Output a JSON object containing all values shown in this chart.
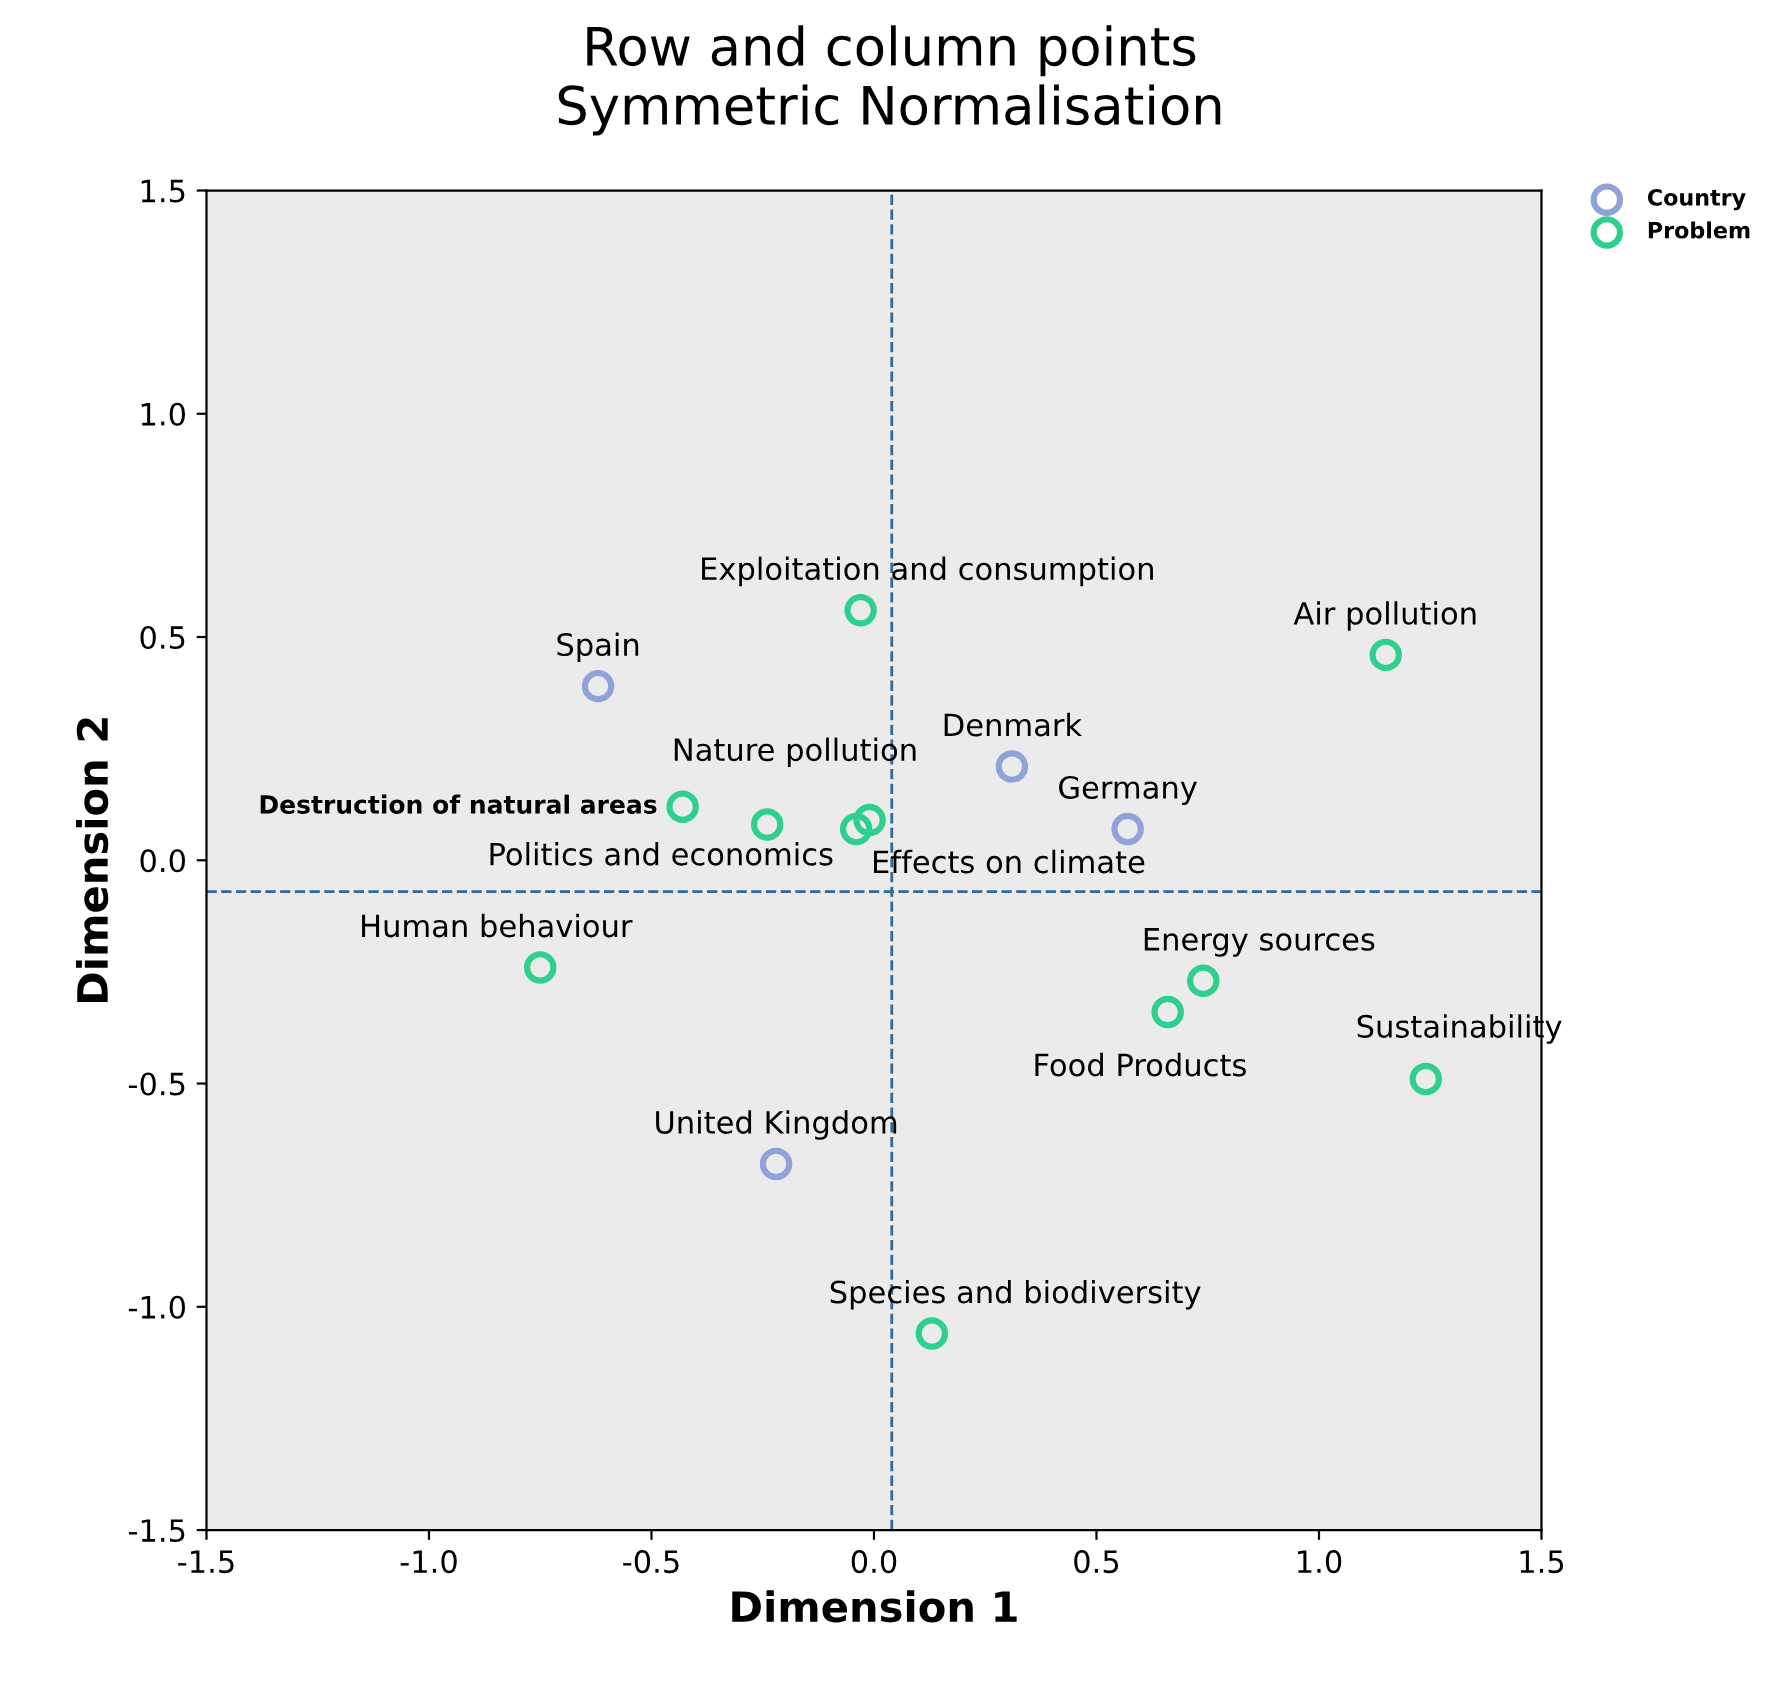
{
  "chart_data": {
    "type": "scatter",
    "title": "Row and column points\nSymmetric Normalisation",
    "xlabel": "Dimension 1",
    "ylabel": "Dimension 2",
    "xlim": [
      -1.5,
      1.5
    ],
    "ylim": [
      -1.5,
      1.5
    ],
    "xticks": [
      -1.5,
      {
        "value": -1,
        "label": "-1.0"
      },
      -0.5,
      {
        "value": 0,
        "label": "0.0"
      },
      0.5,
      {
        "value": 1,
        "label": "1.0"
      },
      1.5
    ],
    "yticks": [
      -1.5,
      {
        "value": -1,
        "label": "-1.0"
      },
      -0.5,
      {
        "value": 0,
        "label": "0.0"
      },
      0.5,
      {
        "value": 1,
        "label": "1.0"
      },
      1.5
    ],
    "series": [
      {
        "name": "Country",
        "color": "#8fa3d9",
        "x": [
          -0.62,
          0.31,
          0.57,
          -0.22
        ],
        "values": [
          0.39,
          0.21,
          0.07,
          -0.68
        ]
      },
      {
        "name": "Problem",
        "color": "#2ecf8f",
        "x": [
          -0.03,
          1.15,
          -0.43,
          -0.24,
          -0.04,
          -0.01,
          -0.75,
          0.74,
          0.66,
          1.24,
          0.13
        ],
        "values": [
          0.56,
          0.46,
          0.12,
          0.08,
          0.07,
          0.09,
          -0.24,
          -0.27,
          -0.34,
          -0.49,
          -1.06
        ]
      }
    ],
    "annotations": [
      {
        "text": "Spain",
        "x": -0.62,
        "y": 0.39
      },
      {
        "text": "Denmark",
        "x": 0.31,
        "y": 0.21
      },
      {
        "text": "Germany",
        "x": 0.57,
        "y": 0.07
      },
      {
        "text": "United Kingdom",
        "x": -0.22,
        "y": -0.68
      },
      {
        "text": "Exploitation and consumption",
        "x": -0.03,
        "y": 0.56
      },
      {
        "text": "Air pollution",
        "x": 1.15,
        "y": 0.46
      },
      {
        "text": "Destruction of natural areas",
        "x": -0.43,
        "y": 0.12
      },
      {
        "text": "Nature pollution",
        "x": -0.24,
        "y": 0.08
      },
      {
        "text": "Politics and economics",
        "x": -0.04,
        "y": 0.07
      },
      {
        "text": "Effects on climate",
        "x": -0.01,
        "y": 0.09
      },
      {
        "text": "Human behaviour",
        "x": -0.75,
        "y": -0.24
      },
      {
        "text": "Energy sources",
        "x": 0.74,
        "y": -0.27
      },
      {
        "text": "Food Products",
        "x": 0.66,
        "y": -0.34
      },
      {
        "text": "Sustainability",
        "x": 1.24,
        "y": -0.49
      },
      {
        "text": "Species and biodiversity",
        "x": 0.13,
        "y": -1.06
      }
    ],
    "ref_lines": [
      {
        "axis": "x",
        "value": 0.04,
        "line_style": "dashed",
        "color": "#2e6a9e"
      },
      {
        "axis": "y",
        "value": -0.07,
        "line_style": "dashed",
        "color": "#2e6a9e"
      }
    ],
    "marker": "circle",
    "grid": false,
    "legend": "top right"
  }
}
